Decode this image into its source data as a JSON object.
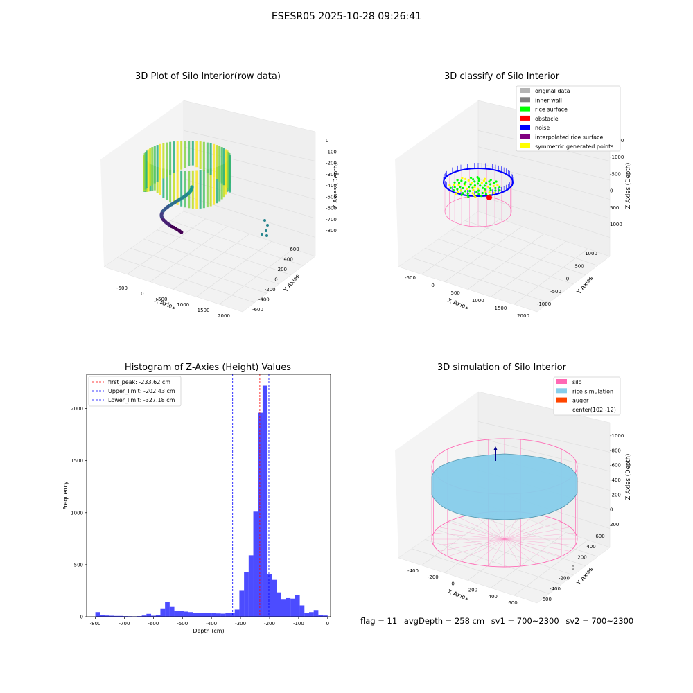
{
  "main_title": "ESESR05 2025-10-28 09:26:41",
  "panels": {
    "raw": {
      "title": "3D Plot of Silo Interior(row data)",
      "x_label": "X Axies",
      "y_label": "Y Axies",
      "z_label": "Z Axies (Depth)",
      "x_ticks": [
        "-500",
        "0",
        "500",
        "1000",
        "1500",
        "2000"
      ],
      "y_ticks": [
        "-600",
        "-400",
        "-200",
        "0",
        "200",
        "400",
        "600"
      ],
      "z_ticks": [
        "-800",
        "-700",
        "-600",
        "-500",
        "-400",
        "-300",
        "-200",
        "-100",
        "0"
      ]
    },
    "classify": {
      "title": "3D classify of Silo Interior",
      "x_label": "X Axies",
      "y_label": "Y Axies",
      "z_label": "Z Axies (Depth)",
      "x_ticks": [
        "-500",
        "0",
        "500",
        "1000",
        "1500",
        "2000"
      ],
      "y_ticks": [
        "-1000",
        "-500",
        "0",
        "500",
        "1000"
      ],
      "z_ticks": [
        "-1500",
        "-1000",
        "-500",
        "0",
        "500",
        "1000"
      ],
      "legend": [
        {
          "label": "original data",
          "color": "#b4b4b4"
        },
        {
          "label": "inner wall",
          "color": "#808080"
        },
        {
          "label": "rice surface",
          "color": "#00ff00"
        },
        {
          "label": "obstacle",
          "color": "#ff0000"
        },
        {
          "label": "noise",
          "color": "#0000ff"
        },
        {
          "label": "interpolated rice surface",
          "color": "#800080"
        },
        {
          "label": "symmetric generated points",
          "color": "#ffff00"
        }
      ]
    },
    "simulation": {
      "title": "3D simulation of Silo Interior",
      "x_label": "X Axies",
      "y_label": "Y Axies",
      "z_label": "Z Axies (Depth)",
      "x_ticks": [
        "-400",
        "-200",
        "0",
        "200",
        "400",
        "600"
      ],
      "y_ticks": [
        "-600",
        "-400",
        "-200",
        "0",
        "200",
        "400",
        "600"
      ],
      "z_ticks": [
        "-1000",
        "-800",
        "-600",
        "-400",
        "-200",
        "0",
        "200"
      ],
      "legend": [
        {
          "label": "silo",
          "color": "#ff69b4"
        },
        {
          "label": "rice simulation",
          "color": "#87ceeb"
        },
        {
          "label": "auger",
          "color": "#ff4500"
        },
        {
          "label": "center(102,-12)",
          "color": ""
        }
      ]
    }
  },
  "chart_data": {
    "type": "bar",
    "title": "Histogram of Z-Axies (Height) Values",
    "xlabel": "Depth (cm)",
    "ylabel": "Frequency",
    "xlim": [
      -830,
      10
    ],
    "ylim": [
      0,
      2330
    ],
    "x_ticks": [
      -800,
      -700,
      -600,
      -500,
      -400,
      -300,
      -200,
      -100,
      0
    ],
    "y_ticks": [
      0,
      500,
      1000,
      1500,
      2000
    ],
    "bar_color": "#0000ff",
    "bin_width": 16,
    "bin_starts": [
      -800,
      -784,
      -768,
      -752,
      -736,
      -720,
      -704,
      -688,
      -672,
      -656,
      -640,
      -624,
      -608,
      -592,
      -576,
      -560,
      -544,
      -528,
      -512,
      -496,
      -480,
      -464,
      -448,
      -432,
      -416,
      -400,
      -384,
      -368,
      -352,
      -336,
      -320,
      -304,
      -288,
      -272,
      -256,
      -240,
      -224,
      -208,
      -192,
      -176,
      -160,
      -144,
      -128,
      -112,
      -96,
      -80,
      -64,
      -48,
      -32,
      -16
    ],
    "values": [
      45,
      20,
      12,
      10,
      8,
      8,
      6,
      5,
      4,
      6,
      12,
      28,
      10,
      20,
      75,
      140,
      95,
      60,
      55,
      50,
      45,
      40,
      38,
      40,
      38,
      35,
      32,
      30,
      35,
      40,
      70,
      250,
      430,
      590,
      1010,
      1960,
      2220,
      410,
      355,
      235,
      165,
      180,
      175,
      210,
      110,
      35,
      45,
      65,
      20,
      12
    ],
    "reference_lines": [
      {
        "label": "first_peak: -233.62 cm",
        "value": -233.62,
        "color": "#ff0000"
      },
      {
        "label": "Upper_limit: -202.43 cm",
        "value": -202.43,
        "color": "#0000ff"
      },
      {
        "label": "Lower_limit: -327.18 cm",
        "value": -327.18,
        "color": "#0000ff"
      }
    ],
    "legend_position": "top-left"
  },
  "footer": {
    "flag": "flag = 11",
    "avg_depth": "avgDepth = 258 cm",
    "sv1": "sv1 = 700~2300",
    "sv2": "sv2 = 700~2300"
  }
}
